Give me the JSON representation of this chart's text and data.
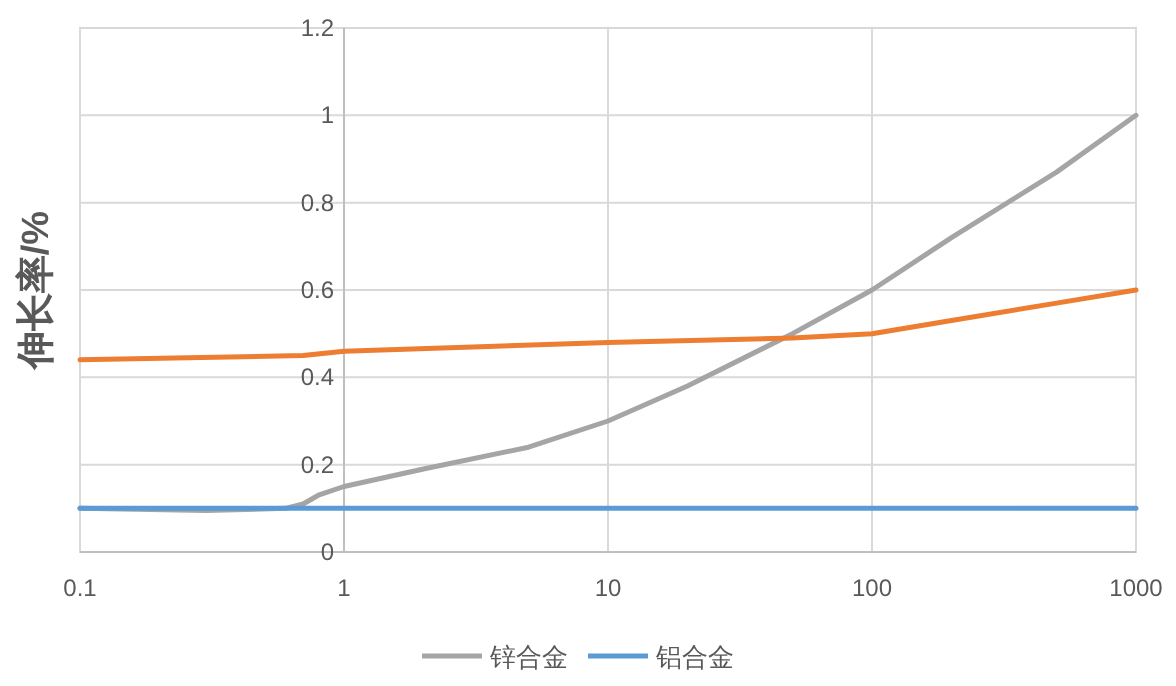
{
  "chart_data": {
    "type": "line",
    "ylabel": "伸长率/%",
    "log": "x",
    "xlim": [
      0.1,
      1000
    ],
    "xticks": [
      0.1,
      1,
      10,
      100,
      1000
    ],
    "ylim": [
      0,
      1.2
    ],
    "yticks": [
      0,
      0.2,
      0.4,
      0.6,
      0.8,
      1,
      1.2
    ],
    "grid": true,
    "legend": "bottom",
    "marker": "none",
    "line_style": "solid",
    "series": [
      {
        "name": "锌合金",
        "color": "#a5a5a5",
        "x": [
          0.1,
          0.3,
          0.6,
          0.7,
          0.8,
          1,
          2,
          5,
          10,
          20,
          50,
          100,
          200,
          500,
          1000
        ],
        "values": [
          0.1,
          0.095,
          0.1,
          0.11,
          0.13,
          0.15,
          0.19,
          0.24,
          0.3,
          0.38,
          0.5,
          0.6,
          0.72,
          0.87,
          1.0
        ]
      },
      {
        "name": "铝合金",
        "color": "#5b9bd5",
        "x": [
          0.1,
          1000
        ],
        "values": [
          0.1,
          0.1
        ]
      },
      {
        "color": "#ed7d31",
        "x": [
          0.1,
          0.7,
          1,
          10,
          50,
          100,
          200,
          500,
          1000
        ],
        "values": [
          0.44,
          0.45,
          0.46,
          0.48,
          0.49,
          0.5,
          0.53,
          0.57,
          0.6
        ]
      }
    ]
  }
}
